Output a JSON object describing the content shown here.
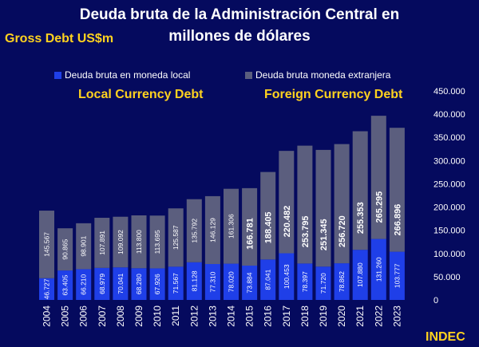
{
  "header": {
    "title_line1": "Deuda bruta de la Administración Central en",
    "title_line2": "millones de dólares"
  },
  "labels": {
    "gross_debt": "Gross Debt  US$m",
    "local_currency": "Local Currency Debt",
    "foreign_currency": "Foreign Currency Debt",
    "source": "INDEC"
  },
  "colors": {
    "background": "#050a5e",
    "local": "#1f3fe8",
    "foreign": "#5b5e7e",
    "accent": "#ffd21f"
  },
  "chart_data": {
    "type": "bar",
    "stacked": true,
    "categories": [
      "2004",
      "2005",
      "2006",
      "2007",
      "2008",
      "2009",
      "2010",
      "2011",
      "2012",
      "2013",
      "2014",
      "2015",
      "2016",
      "2017",
      "2018",
      "2019",
      "2020",
      "2021",
      "2022",
      "2023"
    ],
    "series": [
      {
        "name": "Deuda bruta en moneda local",
        "values": [
          46727,
          63405,
          66210,
          68979,
          70041,
          68280,
          67926,
          71567,
          81128,
          77310,
          78020,
          73884,
          87041,
          100453,
          78397,
          71720,
          78862,
          107880,
          131260,
          103777
        ],
        "labels": [
          "46.727",
          "63.405",
          "66.210",
          "68.979",
          "70.041",
          "68.280",
          "67.926",
          "71.567",
          "81.128",
          "77.310",
          "78.020",
          "73.884",
          "87.041",
          "100.453",
          "78.397",
          "71.720",
          "78.862",
          "107.880",
          "131.260",
          "103.777"
        ]
      },
      {
        "name": "Deuda bruta moneda extranjera",
        "values": [
          145567,
          90865,
          98901,
          107891,
          109092,
          113800,
          113695,
          125587,
          135792,
          146129,
          161306,
          166781,
          188405,
          220482,
          253795,
          251345,
          256720,
          255353,
          265295,
          266896
        ],
        "labels": [
          "145.567",
          "90.865",
          "98.901",
          "107.891",
          "109.092",
          "113.800",
          "113.695",
          "125.587",
          "135.792",
          "146.129",
          "161.306",
          "166.781",
          "188.405",
          "220.482",
          "253.795",
          "251.345",
          "256.720",
          "255.353",
          "265.295",
          "266.896"
        ]
      }
    ],
    "ylim": [
      0,
      450000
    ],
    "yticks": [
      "0",
      "50.000",
      "100.000",
      "150.000",
      "200.000",
      "250.000",
      "300.000",
      "350.000",
      "400.000",
      "450.000"
    ],
    "title": "Deuda bruta de la Administración Central en millones de dólares",
    "xlabel": "",
    "ylabel": "",
    "grid": false,
    "legend": "top"
  }
}
